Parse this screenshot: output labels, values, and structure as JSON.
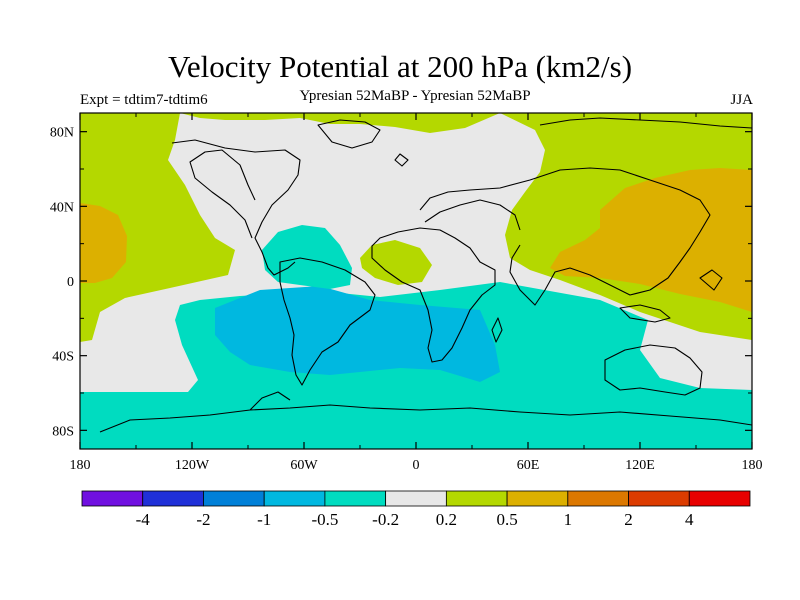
{
  "header": {
    "title": "Velocity Potential at 200 hPa (km2/s)",
    "left_label": "Expt = tdtim7-tdtim6",
    "center_label": "Ypresian  52MaBP - Ypresian  52MaBP",
    "right_label": "JJA"
  },
  "axes": {
    "lat_ticks": [
      {
        "value": 80,
        "label": "80N"
      },
      {
        "value": 40,
        "label": "40N"
      },
      {
        "value": 0,
        "label": "0"
      },
      {
        "value": -40,
        "label": "40S"
      },
      {
        "value": -80,
        "label": "80S"
      }
    ],
    "lon_ticks": [
      {
        "value": -180,
        "label": "180"
      },
      {
        "value": -120,
        "label": "120W"
      },
      {
        "value": -60,
        "label": "60W"
      },
      {
        "value": 0,
        "label": "0"
      },
      {
        "value": 60,
        "label": "60E"
      },
      {
        "value": 120,
        "label": "120E"
      },
      {
        "value": 180,
        "label": "180"
      }
    ]
  },
  "colorbar": {
    "colors": [
      "#7010e0",
      "#2030d8",
      "#0080d8",
      "#00b8e0",
      "#00dcc0",
      "#e8e8e8",
      "#b4d800",
      "#dcb000",
      "#dc7800",
      "#dc3c00",
      "#e80000"
    ],
    "labels": [
      "-4",
      "-2",
      "-1",
      "-0.5",
      "-0.2",
      "0.2",
      "0.5",
      "1",
      "2",
      "4"
    ]
  }
}
